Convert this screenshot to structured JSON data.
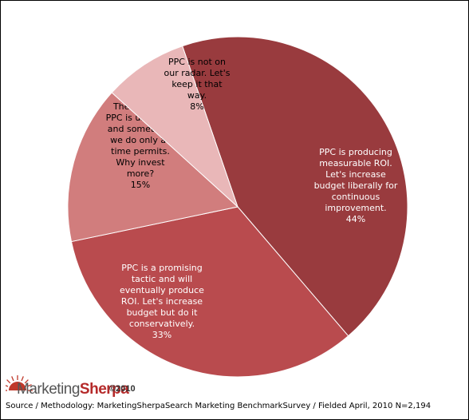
{
  "chart_data": {
    "type": "pie",
    "slices": [
      {
        "lines": [
          "PPC is producing",
          "measurable ROI.",
          "Let's increase",
          "budget liberally for",
          "continuous",
          "improvement."
        ],
        "pct": "44%",
        "value": 44,
        "color": "#993b3e",
        "text_color": "#ffffff"
      },
      {
        "lines": [
          "PPC is a promising",
          "tactic and will",
          "eventually produce",
          "ROI. Let's increase",
          "budget but do it",
          "conservatively."
        ],
        "pct": "33%",
        "value": 33,
        "color": "#b94b4e",
        "text_color": "#ffffff"
      },
      {
        "lines": [
          "The value of",
          "PPC is unknown",
          "and something",
          "we do only as",
          "time permits.",
          "Why invest",
          "more?"
        ],
        "pct": "15%",
        "value": 15,
        "color": "#d17d7d",
        "text_color": "#000000"
      },
      {
        "lines": [
          "PPC is not on",
          "our radar. Let's",
          "keep it that",
          "way."
        ],
        "pct": "8%",
        "value": 8,
        "color": "#e9b7b8",
        "text_color": "#000000"
      }
    ]
  },
  "branding": {
    "logo_word1": "Marketing",
    "logo_word2": "Sherpa",
    "copyright": "©2010",
    "logo_sun_color": "#c0392b"
  },
  "source_note": "Source / Methodology: MarketingSherpaSearch Marketing BenchmarkSurvey / Fielded April, 2010 N=2,194"
}
